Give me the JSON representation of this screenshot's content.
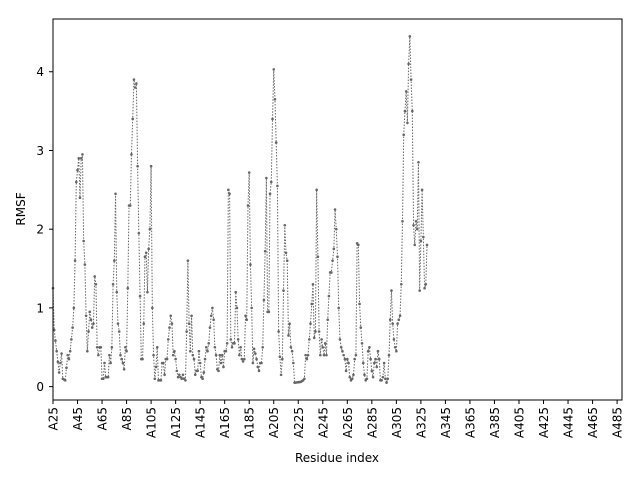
{
  "chart_data": {
    "type": "line",
    "title": "",
    "xlabel": "Residue index",
    "ylabel": "RMSF",
    "x_start": 25,
    "x_end": 489,
    "x_tick_prefix": "A",
    "x_ticks": [
      "A25",
      "A45",
      "A65",
      "A85",
      "A105",
      "A125",
      "A145",
      "A165",
      "A185",
      "A205",
      "A225",
      "A245",
      "A265",
      "A285",
      "A305",
      "A325",
      "A345",
      "A365",
      "A385",
      "A405",
      "A425",
      "A445",
      "A465",
      "A485"
    ],
    "y_ticks": [
      "0",
      "1",
      "2",
      "3",
      "4"
    ],
    "ylim": [
      -0.17,
      4.67
    ],
    "grid": false,
    "line_color": "#666666",
    "anchors": [
      [
        25,
        1.25
      ],
      [
        26,
        0.72
      ],
      [
        28,
        0.45
      ],
      [
        30,
        0.18
      ],
      [
        32,
        0.42
      ],
      [
        33,
        0.1
      ],
      [
        35,
        0.08
      ],
      [
        37,
        0.4
      ],
      [
        38,
        0.35
      ],
      [
        39,
        0.45
      ],
      [
        41,
        0.75
      ],
      [
        42,
        1.0
      ],
      [
        43,
        1.6
      ],
      [
        44,
        2.6
      ],
      [
        45,
        2.75
      ],
      [
        46,
        2.9
      ],
      [
        47,
        2.4
      ],
      [
        48,
        2.9
      ],
      [
        49,
        2.95
      ],
      [
        50,
        1.85
      ],
      [
        51,
        1.55
      ],
      [
        52,
        0.9
      ],
      [
        53,
        0.45
      ],
      [
        54,
        0.7
      ],
      [
        55,
        0.95
      ],
      [
        57,
        0.75
      ],
      [
        58,
        0.8
      ],
      [
        59,
        1.4
      ],
      [
        60,
        1.3
      ],
      [
        61,
        0.5
      ],
      [
        62,
        0.4
      ],
      [
        63,
        0.5
      ],
      [
        64,
        0.5
      ],
      [
        65,
        0.1
      ],
      [
        66,
        0.1
      ],
      [
        67,
        0.3
      ],
      [
        68,
        0.12
      ],
      [
        70,
        0.12
      ],
      [
        71,
        0.4
      ],
      [
        72,
        0.3
      ],
      [
        73,
        0.5
      ],
      [
        74,
        1.3
      ],
      [
        75,
        1.6
      ],
      [
        76,
        2.45
      ],
      [
        77,
        1.2
      ],
      [
        78,
        0.8
      ],
      [
        79,
        0.7
      ],
      [
        80,
        0.4
      ],
      [
        81,
        0.35
      ],
      [
        82,
        0.3
      ],
      [
        83,
        0.22
      ],
      [
        84,
        0.5
      ],
      [
        85,
        0.45
      ],
      [
        86,
        1.25
      ],
      [
        87,
        2.3
      ],
      [
        88,
        2.3
      ],
      [
        89,
        2.95
      ],
      [
        90,
        3.4
      ],
      [
        91,
        3.9
      ],
      [
        92,
        3.8
      ],
      [
        93,
        3.85
      ],
      [
        94,
        2.8
      ],
      [
        95,
        1.95
      ],
      [
        96,
        1.15
      ],
      [
        97,
        0.35
      ],
      [
        98,
        0.35
      ],
      [
        99,
        0.8
      ],
      [
        100,
        1.65
      ],
      [
        101,
        1.7
      ],
      [
        102,
        1.2
      ],
      [
        103,
        1.75
      ],
      [
        104,
        2.0
      ],
      [
        105,
        2.8
      ],
      [
        106,
        1.0
      ],
      [
        107,
        0.4
      ],
      [
        108,
        0.1
      ],
      [
        109,
        0.25
      ],
      [
        110,
        0.5
      ],
      [
        111,
        0.08
      ],
      [
        113,
        0.08
      ],
      [
        114,
        0.3
      ],
      [
        115,
        0.3
      ],
      [
        116,
        0.15
      ],
      [
        117,
        0.35
      ],
      [
        118,
        0.35
      ],
      [
        119,
        0.6
      ],
      [
        120,
        0.75
      ],
      [
        121,
        0.9
      ],
      [
        122,
        0.8
      ],
      [
        123,
        0.4
      ],
      [
        124,
        0.45
      ],
      [
        125,
        0.35
      ],
      [
        126,
        0.2
      ],
      [
        127,
        0.12
      ],
      [
        128,
        0.15
      ],
      [
        129,
        0.12
      ],
      [
        130,
        0.1
      ],
      [
        131,
        0.15
      ],
      [
        132,
        0.1
      ],
      [
        133,
        0.08
      ],
      [
        134,
        0.7
      ],
      [
        135,
        1.6
      ],
      [
        136,
        0.8
      ],
      [
        137,
        0.45
      ],
      [
        138,
        0.9
      ],
      [
        139,
        0.4
      ],
      [
        140,
        0.35
      ],
      [
        141,
        0.15
      ],
      [
        142,
        0.2
      ],
      [
        143,
        0.2
      ],
      [
        144,
        0.45
      ],
      [
        145,
        0.3
      ],
      [
        146,
        0.12
      ],
      [
        147,
        0.1
      ],
      [
        148,
        0.18
      ],
      [
        149,
        0.35
      ],
      [
        150,
        0.5
      ],
      [
        151,
        0.45
      ],
      [
        152,
        0.55
      ],
      [
        153,
        0.75
      ],
      [
        154,
        0.9
      ],
      [
        155,
        1.0
      ],
      [
        156,
        0.85
      ],
      [
        157,
        0.5
      ],
      [
        158,
        0.4
      ],
      [
        159,
        0.22
      ],
      [
        160,
        0.2
      ],
      [
        161,
        0.4
      ],
      [
        162,
        0.3
      ],
      [
        163,
        0.4
      ],
      [
        164,
        0.25
      ],
      [
        165,
        0.45
      ],
      [
        166,
        0.45
      ],
      [
        167,
        0.55
      ],
      [
        168,
        2.5
      ],
      [
        169,
        2.45
      ],
      [
        170,
        0.6
      ],
      [
        171,
        0.5
      ],
      [
        172,
        0.55
      ],
      [
        173,
        0.55
      ],
      [
        174,
        1.2
      ],
      [
        175,
        1.0
      ],
      [
        176,
        0.6
      ],
      [
        177,
        0.4
      ],
      [
        178,
        0.5
      ],
      [
        179,
        0.35
      ],
      [
        180,
        0.32
      ],
      [
        181,
        0.35
      ],
      [
        182,
        0.9
      ],
      [
        183,
        0.85
      ],
      [
        184,
        2.3
      ],
      [
        185,
        2.72
      ],
      [
        186,
        1.55
      ],
      [
        187,
        1.0
      ],
      [
        188,
        0.3
      ],
      [
        189,
        0.48
      ],
      [
        190,
        0.42
      ],
      [
        191,
        0.35
      ],
      [
        192,
        0.25
      ],
      [
        193,
        0.2
      ],
      [
        194,
        0.3
      ],
      [
        195,
        0.3
      ],
      [
        196,
        0.5
      ],
      [
        197,
        1.1
      ],
      [
        198,
        1.72
      ],
      [
        199,
        2.65
      ],
      [
        200,
        0.95
      ],
      [
        201,
        0.95
      ],
      [
        202,
        2.45
      ],
      [
        203,
        2.6
      ],
      [
        204,
        3.4
      ],
      [
        205,
        4.03
      ],
      [
        206,
        3.65
      ],
      [
        207,
        3.1
      ],
      [
        208,
        2.55
      ],
      [
        209,
        0.7
      ],
      [
        210,
        0.38
      ],
      [
        211,
        0.15
      ],
      [
        212,
        0.35
      ],
      [
        213,
        1.22
      ],
      [
        214,
        2.05
      ],
      [
        215,
        1.7
      ],
      [
        216,
        1.6
      ],
      [
        217,
        0.65
      ],
      [
        218,
        0.8
      ],
      [
        219,
        0.5
      ],
      [
        220,
        0.45
      ],
      [
        221,
        0.3
      ],
      [
        222,
        0.05
      ],
      [
        227,
        0.06
      ],
      [
        229,
        0.08
      ],
      [
        230,
        0.1
      ],
      [
        231,
        0.4
      ],
      [
        232,
        0.35
      ],
      [
        233,
        0.4
      ],
      [
        234,
        0.6
      ],
      [
        235,
        0.8
      ],
      [
        236,
        1.05
      ],
      [
        237,
        1.3
      ],
      [
        238,
        0.62
      ],
      [
        239,
        0.7
      ],
      [
        240,
        2.5
      ],
      [
        241,
        1.65
      ],
      [
        242,
        0.7
      ],
      [
        243,
        0.4
      ],
      [
        244,
        0.6
      ],
      [
        245,
        0.5
      ],
      [
        246,
        0.4
      ],
      [
        247,
        0.55
      ],
      [
        248,
        0.4
      ],
      [
        249,
        0.85
      ],
      [
        250,
        1.15
      ],
      [
        251,
        1.45
      ],
      [
        252,
        1.45
      ],
      [
        253,
        1.6
      ],
      [
        254,
        1.75
      ],
      [
        255,
        2.25
      ],
      [
        256,
        2.0
      ],
      [
        257,
        1.65
      ],
      [
        258,
        1.0
      ],
      [
        259,
        0.6
      ],
      [
        260,
        0.5
      ],
      [
        261,
        0.45
      ],
      [
        262,
        0.4
      ],
      [
        263,
        0.35
      ],
      [
        264,
        0.2
      ],
      [
        265,
        0.35
      ],
      [
        266,
        0.3
      ],
      [
        267,
        0.12
      ],
      [
        268,
        0.08
      ],
      [
        269,
        0.1
      ],
      [
        270,
        0.15
      ],
      [
        271,
        0.35
      ],
      [
        272,
        0.4
      ],
      [
        273,
        1.82
      ],
      [
        274,
        1.8
      ],
      [
        275,
        1.05
      ],
      [
        276,
        0.75
      ],
      [
        277,
        0.55
      ],
      [
        278,
        0.3
      ],
      [
        279,
        0.15
      ],
      [
        280,
        0.08
      ],
      [
        281,
        0.1
      ],
      [
        282,
        0.45
      ],
      [
        283,
        0.5
      ],
      [
        284,
        0.35
      ],
      [
        285,
        0.2
      ],
      [
        286,
        0.12
      ],
      [
        287,
        0.3
      ],
      [
        288,
        0.35
      ],
      [
        289,
        0.25
      ],
      [
        290,
        0.45
      ],
      [
        291,
        0.35
      ],
      [
        292,
        0.08
      ],
      [
        293,
        0.08
      ],
      [
        294,
        0.12
      ],
      [
        295,
        0.3
      ],
      [
        296,
        0.1
      ],
      [
        297,
        0.05
      ],
      [
        298,
        0.1
      ],
      [
        299,
        0.4
      ],
      [
        300,
        0.85
      ],
      [
        301,
        1.22
      ],
      [
        302,
        0.8
      ],
      [
        303,
        0.6
      ],
      [
        304,
        0.5
      ],
      [
        305,
        0.45
      ],
      [
        306,
        0.8
      ],
      [
        307,
        0.85
      ],
      [
        308,
        0.9
      ],
      [
        309,
        1.3
      ],
      [
        310,
        2.1
      ],
      [
        311,
        3.2
      ],
      [
        312,
        3.5
      ],
      [
        313,
        3.75
      ],
      [
        314,
        3.35
      ],
      [
        315,
        4.1
      ],
      [
        316,
        4.45
      ],
      [
        317,
        3.9
      ],
      [
        318,
        3.5
      ],
      [
        319,
        2.05
      ],
      [
        320,
        1.8
      ],
      [
        321,
        2.1
      ],
      [
        322,
        2.0
      ],
      [
        323,
        2.85
      ],
      [
        324,
        1.22
      ],
      [
        325,
        1.85
      ],
      [
        326,
        2.5
      ],
      [
        327,
        1.9
      ],
      [
        328,
        1.25
      ],
      [
        329,
        1.3
      ],
      [
        330,
        1.8
      ]
    ]
  }
}
